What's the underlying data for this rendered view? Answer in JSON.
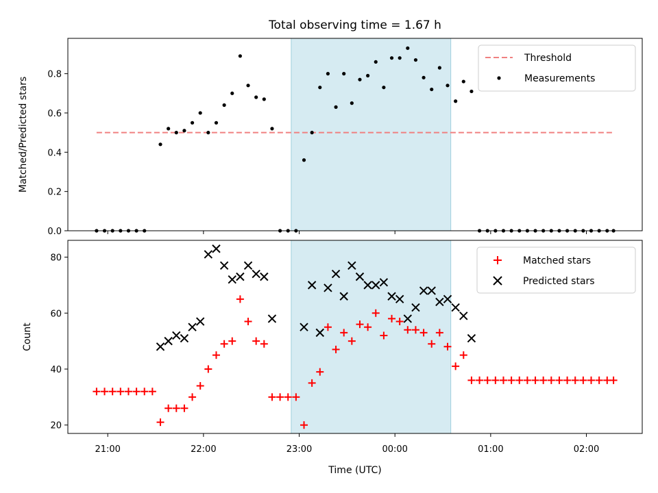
{
  "chart_data": {
    "type": "scatter",
    "title": "Total observing time = 1.67 h",
    "xlabel": "Time (UTC)",
    "x_tick_labels": [
      "21:00",
      "22:00",
      "23:00",
      "00:00",
      "01:00",
      "02:00"
    ],
    "x_ticks": [
      "21:00",
      "22:00",
      "23:00",
      "00:00",
      "01:00",
      "02:00"
    ],
    "xlim": [
      "20:35",
      "02:35"
    ],
    "highlight_span": {
      "start": "22:55",
      "end": "00:35",
      "color": "#add8e6"
    },
    "panels": [
      {
        "ylabel": "Matched/Predicted stars",
        "ylim": [
          0,
          0.98
        ],
        "yticks": [
          0.0,
          0.2,
          0.4,
          0.6,
          0.8
        ],
        "y_tick_labels": [
          "0.0",
          "0.2",
          "0.4",
          "0.6",
          "0.8"
        ],
        "legend_position": "top-right",
        "threshold": {
          "name": "Threshold",
          "value": 0.5,
          "x_start": "20:53",
          "x_end": "02:17",
          "color": "#f08080"
        },
        "series": [
          {
            "name": "Measurements",
            "marker": "dot",
            "color": "#000000",
            "points": [
              [
                "20:53",
                0
              ],
              [
                "20:58",
                0
              ],
              [
                "21:03",
                0
              ],
              [
                "21:08",
                0
              ],
              [
                "21:13",
                0
              ],
              [
                "21:18",
                0
              ],
              [
                "21:23",
                0
              ],
              [
                "21:33",
                0.44
              ],
              [
                "21:38",
                0.52
              ],
              [
                "21:43",
                0.5
              ],
              [
                "21:48",
                0.51
              ],
              [
                "21:53",
                0.55
              ],
              [
                "21:58",
                0.6
              ],
              [
                "22:03",
                0.5
              ],
              [
                "22:08",
                0.55
              ],
              [
                "22:13",
                0.64
              ],
              [
                "22:18",
                0.7
              ],
              [
                "22:23",
                0.89
              ],
              [
                "22:28",
                0.74
              ],
              [
                "22:33",
                0.68
              ],
              [
                "22:38",
                0.67
              ],
              [
                "22:43",
                0.52
              ],
              [
                "22:48",
                0
              ],
              [
                "22:53",
                0
              ],
              [
                "22:58",
                0
              ],
              [
                "23:03",
                0.36
              ],
              [
                "23:08",
                0.5
              ],
              [
                "23:13",
                0.73
              ],
              [
                "23:18",
                0.8
              ],
              [
                "23:23",
                0.63
              ],
              [
                "23:28",
                0.8
              ],
              [
                "23:33",
                0.65
              ],
              [
                "23:38",
                0.77
              ],
              [
                "23:43",
                0.79
              ],
              [
                "23:48",
                0.86
              ],
              [
                "23:53",
                0.73
              ],
              [
                "23:58",
                0.88
              ],
              [
                "00:03",
                0.88
              ],
              [
                "00:08",
                0.93
              ],
              [
                "00:13",
                0.87
              ],
              [
                "00:18",
                0.78
              ],
              [
                "00:23",
                0.72
              ],
              [
                "00:28",
                0.83
              ],
              [
                "00:33",
                0.74
              ],
              [
                "00:38",
                0.66
              ],
              [
                "00:43",
                0.76
              ],
              [
                "00:48",
                0.71
              ],
              [
                "00:53",
                0
              ],
              [
                "00:58",
                0
              ],
              [
                "01:03",
                0
              ],
              [
                "01:08",
                0
              ],
              [
                "01:13",
                0
              ],
              [
                "01:18",
                0
              ],
              [
                "01:23",
                0
              ],
              [
                "01:28",
                0
              ],
              [
                "01:33",
                0
              ],
              [
                "01:38",
                0
              ],
              [
                "01:43",
                0
              ],
              [
                "01:48",
                0
              ],
              [
                "01:53",
                0
              ],
              [
                "01:58",
                0
              ],
              [
                "02:03",
                0
              ],
              [
                "02:08",
                0
              ],
              [
                "02:13",
                0
              ],
              [
                "02:17",
                0
              ]
            ]
          }
        ]
      },
      {
        "ylabel": "Count",
        "ylim": [
          17,
          86
        ],
        "yticks": [
          20,
          40,
          60,
          80
        ],
        "y_tick_labels": [
          "20",
          "40",
          "60",
          "80"
        ],
        "legend_position": "top-right",
        "series": [
          {
            "name": "Matched stars",
            "marker": "plus",
            "color": "#ff0000",
            "points": [
              [
                "20:53",
                32
              ],
              [
                "20:58",
                32
              ],
              [
                "21:03",
                32
              ],
              [
                "21:08",
                32
              ],
              [
                "21:13",
                32
              ],
              [
                "21:18",
                32
              ],
              [
                "21:23",
                32
              ],
              [
                "21:28",
                32
              ],
              [
                "21:33",
                21
              ],
              [
                "21:38",
                26
              ],
              [
                "21:43",
                26
              ],
              [
                "21:48",
                26
              ],
              [
                "21:53",
                30
              ],
              [
                "21:58",
                34
              ],
              [
                "22:03",
                40
              ],
              [
                "22:08",
                45
              ],
              [
                "22:13",
                49
              ],
              [
                "22:18",
                50
              ],
              [
                "22:23",
                65
              ],
              [
                "22:28",
                57
              ],
              [
                "22:33",
                50
              ],
              [
                "22:38",
                49
              ],
              [
                "22:43",
                30
              ],
              [
                "22:48",
                30
              ],
              [
                "22:53",
                30
              ],
              [
                "22:58",
                30
              ],
              [
                "23:03",
                20
              ],
              [
                "23:08",
                35
              ],
              [
                "23:13",
                39
              ],
              [
                "23:18",
                55
              ],
              [
                "23:23",
                47
              ],
              [
                "23:28",
                53
              ],
              [
                "23:33",
                50
              ],
              [
                "23:38",
                56
              ],
              [
                "23:43",
                55
              ],
              [
                "23:48",
                60
              ],
              [
                "23:53",
                52
              ],
              [
                "23:58",
                58
              ],
              [
                "00:03",
                57
              ],
              [
                "00:08",
                54
              ],
              [
                "00:13",
                54
              ],
              [
                "00:18",
                53
              ],
              [
                "00:23",
                49
              ],
              [
                "00:28",
                53
              ],
              [
                "00:33",
                48
              ],
              [
                "00:38",
                41
              ],
              [
                "00:43",
                45
              ],
              [
                "00:48",
                36
              ],
              [
                "00:53",
                36
              ],
              [
                "00:58",
                36
              ],
              [
                "01:03",
                36
              ],
              [
                "01:08",
                36
              ],
              [
                "01:13",
                36
              ],
              [
                "01:18",
                36
              ],
              [
                "01:23",
                36
              ],
              [
                "01:28",
                36
              ],
              [
                "01:33",
                36
              ],
              [
                "01:38",
                36
              ],
              [
                "01:43",
                36
              ],
              [
                "01:48",
                36
              ],
              [
                "01:53",
                36
              ],
              [
                "01:58",
                36
              ],
              [
                "02:03",
                36
              ],
              [
                "02:08",
                36
              ],
              [
                "02:13",
                36
              ],
              [
                "02:17",
                36
              ]
            ]
          },
          {
            "name": "Predicted stars",
            "marker": "x",
            "color": "#000000",
            "points": [
              [
                "21:33",
                48
              ],
              [
                "21:38",
                50
              ],
              [
                "21:43",
                52
              ],
              [
                "21:48",
                51
              ],
              [
                "21:53",
                55
              ],
              [
                "21:58",
                57
              ],
              [
                "22:03",
                81
              ],
              [
                "22:08",
                83
              ],
              [
                "22:13",
                77
              ],
              [
                "22:18",
                72
              ],
              [
                "22:23",
                73
              ],
              [
                "22:28",
                77
              ],
              [
                "22:33",
                74
              ],
              [
                "22:38",
                73
              ],
              [
                "22:43",
                58
              ],
              [
                "23:03",
                55
              ],
              [
                "23:08",
                70
              ],
              [
                "23:13",
                53
              ],
              [
                "23:18",
                69
              ],
              [
                "23:23",
                74
              ],
              [
                "23:28",
                66
              ],
              [
                "23:33",
                77
              ],
              [
                "23:38",
                73
              ],
              [
                "23:43",
                70
              ],
              [
                "23:48",
                70
              ],
              [
                "23:53",
                71
              ],
              [
                "23:58",
                66
              ],
              [
                "00:03",
                65
              ],
              [
                "00:08",
                58
              ],
              [
                "00:13",
                62
              ],
              [
                "00:18",
                68
              ],
              [
                "00:23",
                68
              ],
              [
                "00:28",
                64
              ],
              [
                "00:33",
                65
              ],
              [
                "00:38",
                62
              ],
              [
                "00:43",
                59
              ],
              [
                "00:48",
                51
              ]
            ]
          }
        ]
      }
    ]
  }
}
